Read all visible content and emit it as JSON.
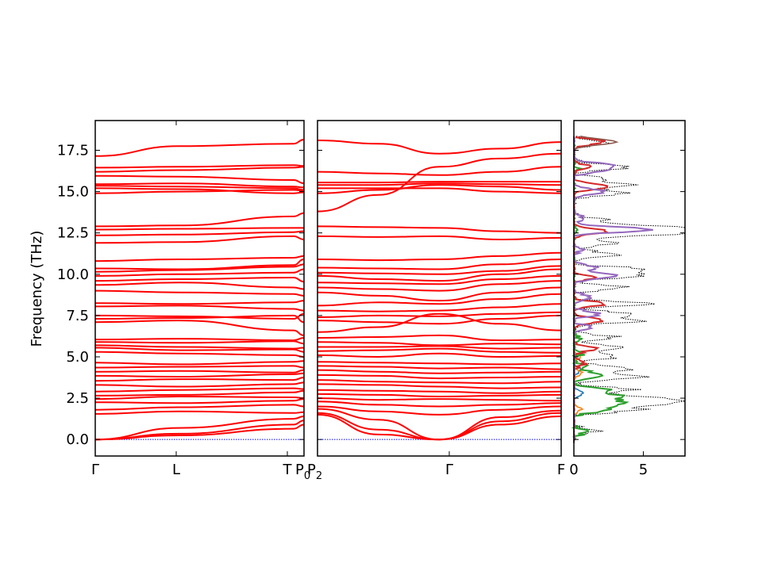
{
  "chart_data": [
    {
      "type": "line",
      "panel": "band-structure-left",
      "ylabel": "Frequency (THz)",
      "ylim": [
        -1.0,
        19.3
      ],
      "yticks": [
        "0.0",
        "2.5",
        "5.0",
        "7.5",
        "10.0",
        "12.5",
        "15.0",
        "17.5"
      ],
      "x_ticks": [
        "Γ",
        "L",
        "T"
      ],
      "x_break_label": "P",
      "x_break_subscript": "0",
      "band_color": "#ff0000",
      "zero_line_color": "#0000ff",
      "path_nodes": [
        0,
        0.4,
        0.95,
        1.0
      ],
      "bands": [
        [
          0,
          0.25,
          0.65,
          0.9
        ],
        [
          0,
          0.35,
          0.9,
          1.15
        ],
        [
          0,
          0.7,
          1.25,
          1.4
        ],
        [
          1.55,
          1.7,
          1.6,
          1.65
        ],
        [
          1.8,
          1.95,
          2.1,
          2.0
        ],
        [
          2.25,
          2.2,
          2.35,
          2.45
        ],
        [
          2.45,
          2.6,
          2.55,
          2.5
        ],
        [
          2.65,
          2.7,
          2.85,
          2.95
        ],
        [
          2.9,
          3.0,
          3.1,
          3.05
        ],
        [
          3.3,
          3.2,
          3.35,
          3.45
        ],
        [
          3.55,
          3.65,
          3.6,
          3.75
        ],
        [
          3.85,
          3.8,
          3.95,
          4.0
        ],
        [
          4.1,
          4.15,
          4.05,
          4.2
        ],
        [
          4.35,
          4.4,
          4.45,
          4.35
        ],
        [
          4.65,
          4.55,
          4.7,
          4.75
        ],
        [
          5.3,
          5.2,
          5.1,
          5.0
        ],
        [
          5.55,
          5.4,
          5.45,
          5.3
        ],
        [
          5.7,
          5.6,
          5.5,
          5.55
        ],
        [
          5.9,
          5.85,
          5.95,
          5.8
        ],
        [
          6.05,
          6.1,
          6.0,
          6.15
        ],
        [
          7.1,
          7.2,
          6.6,
          6.3
        ],
        [
          7.3,
          7.35,
          7.5,
          7.1
        ],
        [
          7.5,
          7.45,
          7.3,
          7.6
        ],
        [
          8.05,
          8.1,
          7.9,
          7.8
        ],
        [
          8.25,
          8.2,
          8.3,
          8.4
        ],
        [
          9.0,
          8.9,
          8.8,
          8.7
        ],
        [
          9.35,
          9.5,
          9.2,
          9.1
        ],
        [
          9.6,
          9.7,
          9.8,
          9.55
        ],
        [
          9.9,
          10.0,
          10.1,
          10.3
        ],
        [
          10.15,
          10.25,
          10.45,
          10.6
        ],
        [
          10.35,
          10.3,
          10.55,
          10.9
        ],
        [
          10.8,
          10.9,
          11.0,
          11.1
        ],
        [
          11.9,
          11.95,
          12.3,
          12.1
        ],
        [
          12.35,
          12.4,
          12.55,
          12.6
        ],
        [
          12.7,
          12.75,
          12.8,
          12.8
        ],
        [
          12.9,
          12.95,
          13.5,
          13.7
        ],
        [
          14.9,
          15.0,
          15.1,
          15.05
        ],
        [
          15.2,
          15.15,
          14.9,
          14.95
        ],
        [
          15.35,
          15.3,
          15.2,
          15.1
        ],
        [
          15.45,
          15.5,
          15.3,
          15.25
        ],
        [
          15.95,
          15.9,
          15.7,
          15.5
        ],
        [
          16.2,
          16.3,
          16.45,
          16.5
        ],
        [
          16.45,
          16.5,
          16.6,
          16.55
        ],
        [
          17.15,
          17.75,
          17.9,
          18.15
        ]
      ]
    },
    {
      "type": "line",
      "panel": "band-structure-right",
      "ylim": [
        -1.0,
        19.3
      ],
      "x_break_label": "P",
      "x_break_subscript": "2",
      "x_ticks": [
        "Γ",
        "F"
      ],
      "band_color": "#ff0000",
      "zero_line_color": "#0000ff",
      "path_nodes": [
        0,
        0.55,
        1.0
      ],
      "bands": [
        [
          1.5,
          0.3,
          0.0,
          0.9,
          1.4
        ],
        [
          1.6,
          0.6,
          0.0,
          1.1,
          1.6
        ],
        [
          1.85,
          1.2,
          0.0,
          1.35,
          1.75
        ],
        [
          2.0,
          1.7,
          1.5,
          1.8,
          2.0
        ],
        [
          2.3,
          2.1,
          2.0,
          2.1,
          2.2
        ],
        [
          2.5,
          2.4,
          2.45,
          2.4,
          2.35
        ],
        [
          2.75,
          2.7,
          2.6,
          2.65,
          2.7
        ],
        [
          3.0,
          2.95,
          2.9,
          2.8,
          2.9
        ],
        [
          3.35,
          3.3,
          3.2,
          3.1,
          3.15
        ],
        [
          3.6,
          3.5,
          3.45,
          3.4,
          3.5
        ],
        [
          3.9,
          3.85,
          3.7,
          3.75,
          3.8
        ],
        [
          4.2,
          4.1,
          4.0,
          4.05,
          4.1
        ],
        [
          4.45,
          4.4,
          4.3,
          4.35,
          4.25
        ],
        [
          4.7,
          4.65,
          4.6,
          4.55,
          4.6
        ],
        [
          5.1,
          5.0,
          5.2,
          5.0,
          5.05
        ],
        [
          5.35,
          5.4,
          5.5,
          5.3,
          5.25
        ],
        [
          5.6,
          5.6,
          5.65,
          5.5,
          5.55
        ],
        [
          5.9,
          5.85,
          5.7,
          5.8,
          5.75
        ],
        [
          6.15,
          6.2,
          6.3,
          6.0,
          6.05
        ],
        [
          6.5,
          6.8,
          7.6,
          7.0,
          6.6
        ],
        [
          7.2,
          7.1,
          7.0,
          7.3,
          7.5
        ],
        [
          7.4,
          7.5,
          7.45,
          7.6,
          7.7
        ],
        [
          7.8,
          7.75,
          7.8,
          8.0,
          8.2
        ],
        [
          8.1,
          8.3,
          8.2,
          8.5,
          8.8
        ],
        [
          8.9,
          8.7,
          8.4,
          8.9,
          9.2
        ],
        [
          9.2,
          9.1,
          9.0,
          9.4,
          9.6
        ],
        [
          9.5,
          9.45,
          9.4,
          9.7,
          9.9
        ],
        [
          9.9,
          9.7,
          9.6,
          10.0,
          10.3
        ],
        [
          10.1,
          10.05,
          10.0,
          10.2,
          10.5
        ],
        [
          10.4,
          10.35,
          10.3,
          10.6,
          10.9
        ],
        [
          10.9,
          10.85,
          10.9,
          11.1,
          11.3
        ],
        [
          12.3,
          12.25,
          12.3,
          12.1,
          12.2
        ],
        [
          12.9,
          12.85,
          12.8,
          12.6,
          12.5
        ],
        [
          13.8,
          14.8,
          16.5,
          17.0,
          17.3
        ],
        [
          14.9,
          15.1,
          15.4,
          15.3,
          15.1
        ],
        [
          15.2,
          15.2,
          15.2,
          15.0,
          14.9
        ],
        [
          15.4,
          15.4,
          15.5,
          15.45,
          15.4
        ],
        [
          15.55,
          15.55,
          15.6,
          15.6,
          15.6
        ],
        [
          16.2,
          16.1,
          16.0,
          16.2,
          16.5
        ],
        [
          18.1,
          17.9,
          17.3,
          17.6,
          18.0
        ]
      ]
    },
    {
      "type": "line",
      "panel": "dos",
      "xlim": [
        0,
        8
      ],
      "xticks": [
        "0",
        "5"
      ],
      "ylim": [
        -1.0,
        19.3
      ],
      "series": [
        {
          "color": "#000000",
          "style": "dotted"
        },
        {
          "color": "#1f77b4"
        },
        {
          "color": "#ff7f0e"
        },
        {
          "color": "#2ca02c"
        },
        {
          "color": "#d62728"
        },
        {
          "color": "#9467bd"
        },
        {
          "color": "#8c564b"
        }
      ]
    }
  ]
}
